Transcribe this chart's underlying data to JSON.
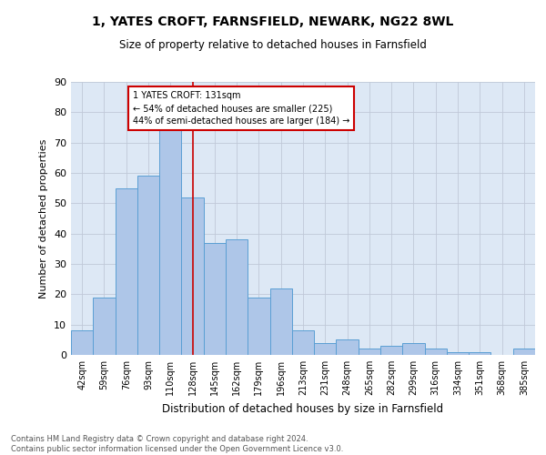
{
  "title_line1": "1, YATES CROFT, FARNSFIELD, NEWARK, NG22 8WL",
  "title_line2": "Size of property relative to detached houses in Farnsfield",
  "xlabel": "Distribution of detached houses by size in Farnsfield",
  "ylabel": "Number of detached properties",
  "bar_labels": [
    "42sqm",
    "59sqm",
    "76sqm",
    "93sqm",
    "110sqm",
    "128sqm",
    "145sqm",
    "162sqm",
    "179sqm",
    "196sqm",
    "213sqm",
    "231sqm",
    "248sqm",
    "265sqm",
    "282sqm",
    "299sqm",
    "316sqm",
    "334sqm",
    "351sqm",
    "368sqm",
    "385sqm"
  ],
  "bar_values": [
    8,
    19,
    55,
    59,
    76,
    52,
    37,
    38,
    19,
    22,
    8,
    4,
    5,
    2,
    3,
    4,
    2,
    1,
    1,
    0,
    2
  ],
  "bar_color": "#aec6e8",
  "bar_edge_color": "#5a9fd4",
  "ylim": [
    0,
    90
  ],
  "yticks": [
    0,
    10,
    20,
    30,
    40,
    50,
    60,
    70,
    80,
    90
  ],
  "vline_position": 5.0,
  "vline_color": "#cc0000",
  "annotation_line1": "1 YATES CROFT: 131sqm",
  "annotation_line2": "← 54% of detached houses are smaller (225)",
  "annotation_line3": "44% of semi-detached houses are larger (184) →",
  "annotation_box_color": "#ffffff",
  "annotation_box_edge_color": "#cc0000",
  "background_color": "#dde8f5",
  "footer_line1": "Contains HM Land Registry data © Crown copyright and database right 2024.",
  "footer_line2": "Contains public sector information licensed under the Open Government Licence v3.0."
}
